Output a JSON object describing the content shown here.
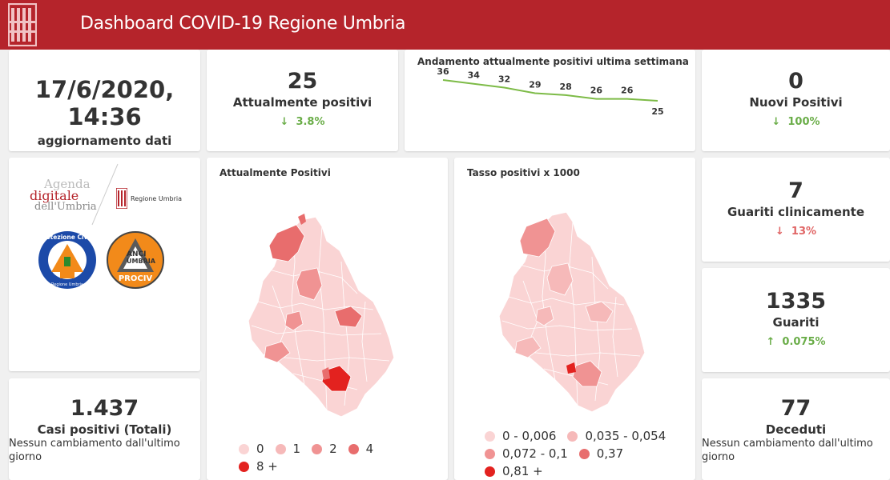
{
  "header": {
    "title": "Dashboard COVID-19 Regione Umbria",
    "logo_icon": "umbria-columns-logo",
    "bar_color": "#b5242b"
  },
  "update": {
    "datetime": "17/6/2020, 14:36",
    "label": "aggiornamento dati"
  },
  "current_positive": {
    "value": "25",
    "label": "Attualmente positivi",
    "delta": "3.8%",
    "delta_icon": "arrow-down-icon"
  },
  "trend": {
    "title": "Andamento attualmente positivi ultima settimana",
    "values": [
      36,
      34,
      32,
      29,
      28,
      26,
      26,
      25
    ],
    "labels": [
      "36",
      "34",
      "32",
      "29",
      "28",
      "26",
      "26",
      "25"
    ],
    "line_color": "#7dbb47"
  },
  "new_positive": {
    "value": "0",
    "label": "Nuovi Positivi",
    "delta": "100%",
    "delta_icon": "arrow-down-icon"
  },
  "logos": {
    "agenda_line1": "Agenda",
    "agenda_line2": "digitale",
    "agenda_line3": "dell'Umbria",
    "regione": "Regione Umbria",
    "protezione": "Protezione Civile",
    "protezione_sub": "Regione Umbria",
    "anci_1": "ANCI",
    "anci_2": "UMBRIA",
    "anci_3": "PROCIV"
  },
  "map_positive": {
    "title": "Attualmente Positivi",
    "legend": [
      {
        "label": "0",
        "color": "#fad4d4"
      },
      {
        "label": "1",
        "color": "#f6b9b9"
      },
      {
        "label": "2",
        "color": "#f09393"
      },
      {
        "label": "4",
        "color": "#e86d6d"
      },
      {
        "label": "8 +",
        "color": "#e3221f"
      }
    ]
  },
  "map_rate": {
    "title": "Tasso positivi x 1000",
    "legend": [
      {
        "label": "0 - 0,006",
        "color": "#fad4d4"
      },
      {
        "label": "0,035 - 0,054",
        "color": "#f6b9b9"
      },
      {
        "label": "0,072 - 0,1",
        "color": "#f09393"
      },
      {
        "label": "0,37",
        "color": "#e86d6d"
      },
      {
        "label": "0,81 +",
        "color": "#e3221f"
      }
    ]
  },
  "healed_clinical": {
    "value": "7",
    "label": "Guariti clinicamente",
    "delta": "13%",
    "delta_icon": "arrow-down-icon"
  },
  "healed": {
    "value": "1335",
    "label": "Guariti",
    "delta": "0.075%",
    "delta_icon": "arrow-up-icon"
  },
  "total_cases": {
    "value": "1.437",
    "label": "Casi positivi (Totali)",
    "note": "Nessun cambiamento dall'ultimo giorno"
  },
  "deaths": {
    "value": "77",
    "label": "Deceduti",
    "note": "Nessun cambiamento dall'ultimo giorno"
  }
}
